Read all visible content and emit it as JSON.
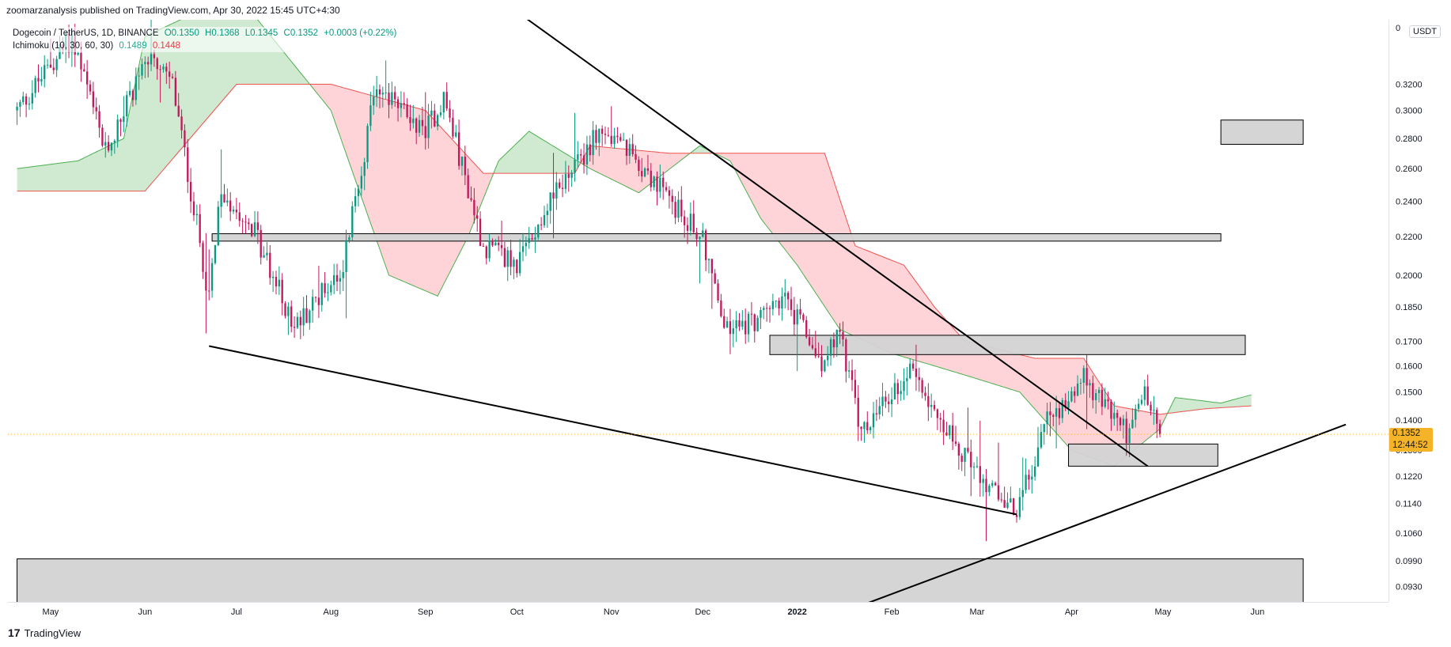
{
  "header": {
    "publish_line": "zoomarzanalysis published on TradingView.com, Apr 30, 2022 15:45 UTC+4:30"
  },
  "legend": {
    "symbol": "Dogecoin / TetherUS, 1D, BINANCE",
    "open": "O0.1350",
    "high": "H0.1368",
    "low": "L0.1345",
    "close": "C0.1352",
    "change": "+0.0003 (+0.22%)",
    "ichimoku_label": "Ichimoku (10, 30, 60, 30)",
    "ichimoku_val1": "0.1489",
    "ichimoku_val2": "0.1448"
  },
  "price_axis": {
    "currency": "USDT",
    "top_label": "0",
    "last_price": "0.1352",
    "countdown": "12:44:52",
    "last_color": "#f5b428"
  },
  "footer": {
    "brand": "TradingView",
    "logo": "17"
  },
  "colors": {
    "up": "#089981",
    "down": "#c2185b",
    "cloud_bear_fill": "#ffcdd2",
    "cloud_bull_fill": "#c8e6c9",
    "span_a": "#4caf50",
    "span_b": "#ef5350",
    "zone_fill": "#d3d3d3",
    "trendline": "#000000"
  },
  "chart_data": {
    "type": "candlestick",
    "title": "Dogecoin / TetherUS, 1D, BINANCE",
    "y_scale": "log",
    "y_ticks": [
      0.32,
      0.3,
      0.28,
      0.26,
      0.24,
      0.22,
      0.2,
      0.185,
      0.17,
      0.16,
      0.15,
      0.14,
      0.13,
      0.122,
      0.114,
      0.106,
      0.099,
      0.093
    ],
    "y_tick_labels": [
      "0.3200",
      "0.3000",
      "0.2800",
      "0.2600",
      "0.2400",
      "0.2200",
      "0.2000",
      "0.1850",
      "0.1700",
      "0.1600",
      "0.1500",
      "0.1400",
      "0.1300",
      "0.1220",
      "0.1140",
      "0.1060",
      "0.0990",
      "0.0930"
    ],
    "x_ticks": [
      {
        "label": "May",
        "date": "2021-05-01"
      },
      {
        "label": "Jun",
        "date": "2021-06-01"
      },
      {
        "label": "Jul",
        "date": "2021-07-01"
      },
      {
        "label": "Aug",
        "date": "2021-08-01"
      },
      {
        "label": "Sep",
        "date": "2021-09-01"
      },
      {
        "label": "Oct",
        "date": "2021-10-01"
      },
      {
        "label": "Nov",
        "date": "2021-11-01"
      },
      {
        "label": "Dec",
        "date": "2021-12-01"
      },
      {
        "label": "2022",
        "date": "2022-01-01",
        "bold": true
      },
      {
        "label": "Feb",
        "date": "2022-02-01"
      },
      {
        "label": "Mar",
        "date": "2022-03-01"
      },
      {
        "label": "Apr",
        "date": "2022-04-01"
      },
      {
        "label": "May",
        "date": "2022-05-01"
      },
      {
        "label": "Jun",
        "date": "2022-06-01"
      }
    ],
    "last_close": 0.1352,
    "anchors": [
      {
        "date": "2021-04-20",
        "close": 0.3
      },
      {
        "date": "2021-05-08",
        "close": 0.36
      },
      {
        "date": "2021-05-19",
        "close": 0.27
      },
      {
        "date": "2021-06-01",
        "close": 0.34
      },
      {
        "date": "2021-06-10",
        "close": 0.32
      },
      {
        "date": "2021-06-22",
        "close": 0.19
      },
      {
        "date": "2021-06-26",
        "close": 0.245
      },
      {
        "date": "2021-07-05",
        "close": 0.23
      },
      {
        "date": "2021-07-20",
        "close": 0.176
      },
      {
        "date": "2021-08-05",
        "close": 0.205
      },
      {
        "date": "2021-08-16",
        "close": 0.32
      },
      {
        "date": "2021-09-01",
        "close": 0.285
      },
      {
        "date": "2021-09-07",
        "close": 0.31
      },
      {
        "date": "2021-09-20",
        "close": 0.215
      },
      {
        "date": "2021-10-01",
        "close": 0.205
      },
      {
        "date": "2021-10-10",
        "close": 0.235
      },
      {
        "date": "2021-10-28",
        "close": 0.285
      },
      {
        "date": "2021-11-10",
        "close": 0.265
      },
      {
        "date": "2021-11-20",
        "close": 0.24
      },
      {
        "date": "2021-12-01",
        "close": 0.22
      },
      {
        "date": "2021-12-08",
        "close": 0.175
      },
      {
        "date": "2021-12-20",
        "close": 0.18
      },
      {
        "date": "2021-12-27",
        "close": 0.19
      },
      {
        "date": "2022-01-10",
        "close": 0.16
      },
      {
        "date": "2022-01-15",
        "close": 0.175
      },
      {
        "date": "2022-01-22",
        "close": 0.135
      },
      {
        "date": "2022-02-08",
        "close": 0.16
      },
      {
        "date": "2022-02-20",
        "close": 0.135
      },
      {
        "date": "2022-03-07",
        "close": 0.117
      },
      {
        "date": "2022-03-14",
        "close": 0.111
      },
      {
        "date": "2022-03-24",
        "close": 0.14
      },
      {
        "date": "2022-04-05",
        "close": 0.155
      },
      {
        "date": "2022-04-20",
        "close": 0.135
      },
      {
        "date": "2022-04-25",
        "close": 0.15
      },
      {
        "date": "2022-04-30",
        "close": 0.1352
      }
    ],
    "ichimoku": {
      "span_a": [
        {
          "date": "2021-04-20",
          "value": 0.26
        },
        {
          "date": "2021-05-10",
          "value": 0.265
        },
        {
          "date": "2021-05-25",
          "value": 0.28
        },
        {
          "date": "2021-06-01",
          "value": 0.36
        },
        {
          "date": "2021-07-01",
          "value": 0.4
        },
        {
          "date": "2021-08-01",
          "value": 0.3
        },
        {
          "date": "2021-08-20",
          "value": 0.2
        },
        {
          "date": "2021-09-05",
          "value": 0.19
        },
        {
          "date": "2021-09-15",
          "value": 0.22
        },
        {
          "date": "2021-09-25",
          "value": 0.265
        },
        {
          "date": "2021-10-05",
          "value": 0.285
        },
        {
          "date": "2021-10-25",
          "value": 0.26
        },
        {
          "date": "2021-11-10",
          "value": 0.245
        },
        {
          "date": "2021-11-30",
          "value": 0.275
        },
        {
          "date": "2021-12-10",
          "value": 0.265
        },
        {
          "date": "2021-12-20",
          "value": 0.23
        },
        {
          "date": "2022-01-01",
          "value": 0.205
        },
        {
          "date": "2022-01-15",
          "value": 0.175
        },
        {
          "date": "2022-02-01",
          "value": 0.165
        },
        {
          "date": "2022-02-15",
          "value": 0.16
        },
        {
          "date": "2022-03-01",
          "value": 0.155
        },
        {
          "date": "2022-03-15",
          "value": 0.15
        },
        {
          "date": "2022-04-01",
          "value": 0.13
        },
        {
          "date": "2022-04-15",
          "value": 0.125
        },
        {
          "date": "2022-04-30",
          "value": 0.137
        },
        {
          "date": "2022-05-05",
          "value": 0.148
        },
        {
          "date": "2022-05-20",
          "value": 0.146
        },
        {
          "date": "2022-05-30",
          "value": 0.149
        }
      ],
      "span_b": [
        {
          "date": "2021-04-20",
          "value": 0.246
        },
        {
          "date": "2021-06-01",
          "value": 0.246
        },
        {
          "date": "2021-07-01",
          "value": 0.32
        },
        {
          "date": "2021-08-01",
          "value": 0.32
        },
        {
          "date": "2021-09-01",
          "value": 0.3
        },
        {
          "date": "2021-09-20",
          "value": 0.257
        },
        {
          "date": "2021-10-20",
          "value": 0.257
        },
        {
          "date": "2021-10-25",
          "value": 0.275
        },
        {
          "date": "2021-11-20",
          "value": 0.27
        },
        {
          "date": "2021-12-01",
          "value": 0.27
        },
        {
          "date": "2021-12-25",
          "value": 0.27
        },
        {
          "date": "2022-01-10",
          "value": 0.27
        },
        {
          "date": "2022-01-20",
          "value": 0.215
        },
        {
          "date": "2022-02-05",
          "value": 0.205
        },
        {
          "date": "2022-02-15",
          "value": 0.185
        },
        {
          "date": "2022-02-25",
          "value": 0.17
        },
        {
          "date": "2022-03-20",
          "value": 0.163
        },
        {
          "date": "2022-04-05",
          "value": 0.163
        },
        {
          "date": "2022-04-15",
          "value": 0.145
        },
        {
          "date": "2022-04-30",
          "value": 0.142
        },
        {
          "date": "2022-05-15",
          "value": 0.144
        },
        {
          "date": "2022-05-30",
          "value": 0.145
        }
      ]
    },
    "zones": [
      {
        "from": "2021-06-23",
        "to": "2022-05-20",
        "top": 0.2215,
        "bottom": 0.2175
      },
      {
        "from": "2021-12-23",
        "to": "2022-05-28",
        "top": 0.1725,
        "bottom": 0.1645
      },
      {
        "from": "2022-03-31",
        "to": "2022-05-19",
        "top": 0.132,
        "bottom": 0.125
      },
      {
        "from": "2022-05-20",
        "to": "2022-06-16",
        "top": 0.293,
        "bottom": 0.276
      },
      {
        "from": "2021-04-20",
        "to": "2022-06-16",
        "top": 0.0995,
        "bottom": 0.089
      }
    ],
    "trendlines": [
      {
        "from": {
          "date": "2021-08-20",
          "value": 0.48
        },
        "to": {
          "date": "2022-04-26",
          "value": 0.125
        }
      },
      {
        "from": {
          "date": "2021-06-22",
          "value": 0.168
        },
        "to": {
          "date": "2022-03-14",
          "value": 0.111
        }
      },
      {
        "from": {
          "date": "2021-12-16",
          "value": 0.08
        },
        "to": {
          "date": "2022-06-30",
          "value": 0.1385
        }
      }
    ]
  }
}
